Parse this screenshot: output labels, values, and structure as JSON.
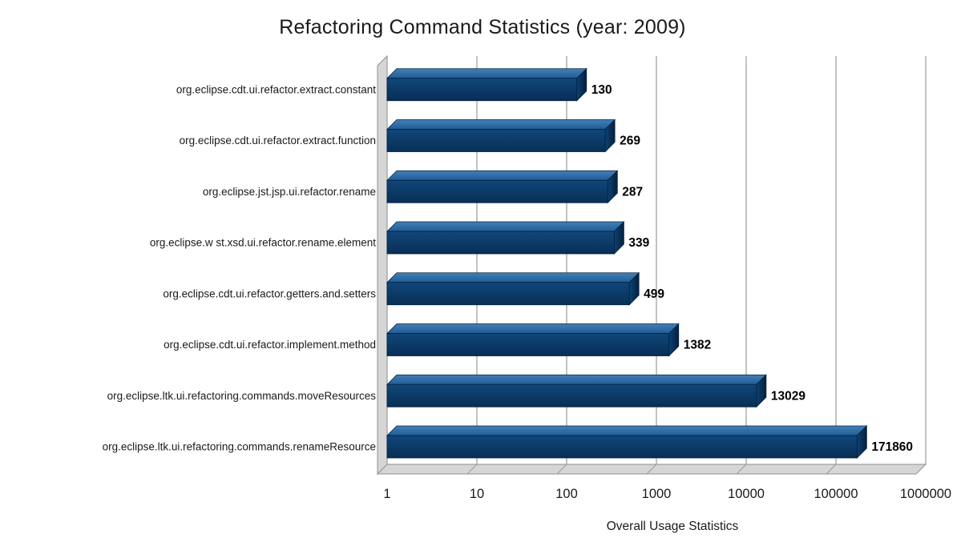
{
  "chart_data": {
    "type": "bar",
    "orientation": "horizontal",
    "title": "Refactoring Command Statistics (year: 2009)",
    "xlabel": "Overall Usage Statistics",
    "ylabel": "",
    "x_scale": "log10",
    "xlim": [
      1,
      1000000
    ],
    "x_ticks": [
      "1",
      "10",
      "100",
      "1000",
      "10000",
      "100000",
      "1000000"
    ],
    "grid": true,
    "legend": "none",
    "categories": [
      "org.eclipse.cdt.ui.refactor.extract.constant",
      "org.eclipse.cdt.ui.refactor.extract.function",
      "org.eclipse.jst.jsp.ui.refactor.rename",
      "org.eclipse.w st.xsd.ui.refactor.rename.element",
      "org.eclipse.cdt.ui.refactor.getters.and.setters",
      "org.eclipse.cdt.ui.refactor.implement.method",
      "org.eclipse.ltk.ui.refactoring.commands.moveResources",
      "org.eclipse.ltk.ui.refactoring.commands.renameResource"
    ],
    "values": [
      130,
      269,
      287,
      339,
      499,
      1382,
      13029,
      171860
    ],
    "value_labels": [
      "130",
      "269",
      "287",
      "339",
      "499",
      "1382",
      "13029",
      "171860"
    ],
    "colors": {
      "bar_front_top": "#10477A",
      "bar_front_bottom": "#082E55",
      "bar_top_light": "#4480B6",
      "bar_top_dark": "#1F5C96",
      "bar_end_light": "#0D4273",
      "bar_end_dark": "#041F3E",
      "bar_outline": "#03203F",
      "wall_fill": "#D6D6D6",
      "wall_stroke": "#8F8F8F",
      "grid": "#9B9B9B",
      "text": "#1A1A1A",
      "value_text": "#000000",
      "background": "#FFFFFF"
    }
  }
}
